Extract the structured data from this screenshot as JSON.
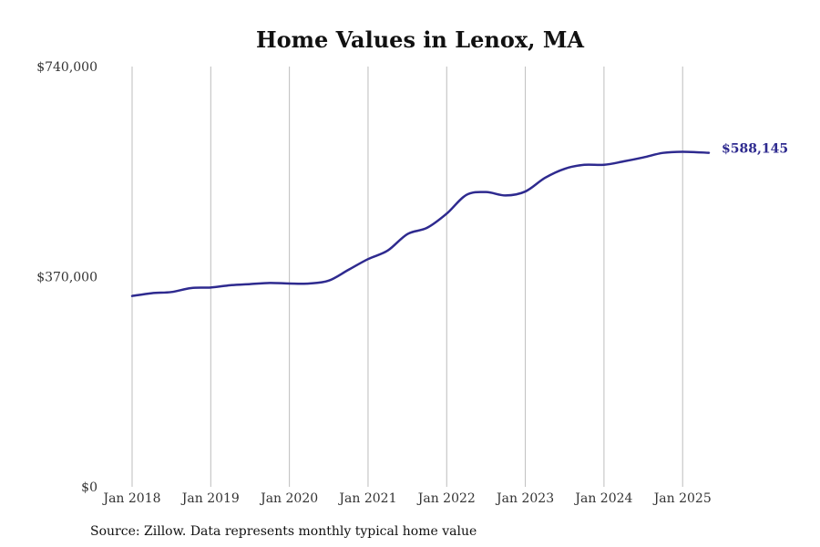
{
  "chart_data": {
    "type": "line",
    "title": "Home Values in Lenox, MA",
    "source_note": "Source: Zillow. Data represents monthly typical home value",
    "y_tick_labels": [
      "$0",
      "$370,000",
      "$740,000"
    ],
    "y_ticks": [
      0,
      370000,
      740000
    ],
    "ylim": [
      0,
      740000
    ],
    "x_tick_labels": [
      "Jan 2018",
      "Jan 2019",
      "Jan 2020",
      "Jan 2021",
      "Jan 2022",
      "Jan 2023",
      "Jan 2024",
      "Jan 2025"
    ],
    "x_ticks": [
      "2018-01",
      "2019-01",
      "2020-01",
      "2021-01",
      "2022-01",
      "2023-01",
      "2024-01",
      "2025-01"
    ],
    "xlim": [
      "2018-01",
      "2025-05"
    ],
    "grid": "vertical",
    "series": [
      {
        "color": "#2e2a8f",
        "end_label": "$588,145",
        "x": [
          "2018-01",
          "2018-04",
          "2018-07",
          "2018-10",
          "2019-01",
          "2019-04",
          "2019-07",
          "2019-10",
          "2020-01",
          "2020-04",
          "2020-07",
          "2020-10",
          "2021-01",
          "2021-04",
          "2021-07",
          "2021-10",
          "2022-01",
          "2022-04",
          "2022-07",
          "2022-10",
          "2023-01",
          "2023-04",
          "2023-07",
          "2023-10",
          "2024-01",
          "2024-04",
          "2024-07",
          "2024-10",
          "2025-01",
          "2025-05"
        ],
        "values": [
          336000,
          341000,
          343000,
          350000,
          351000,
          355000,
          357000,
          359000,
          358000,
          358000,
          363000,
          382000,
          401000,
          416000,
          445000,
          456000,
          481000,
          514000,
          519000,
          513000,
          520000,
          544000,
          560000,
          567000,
          567000,
          573000,
          580000,
          588000,
          590000,
          588145
        ]
      }
    ]
  }
}
